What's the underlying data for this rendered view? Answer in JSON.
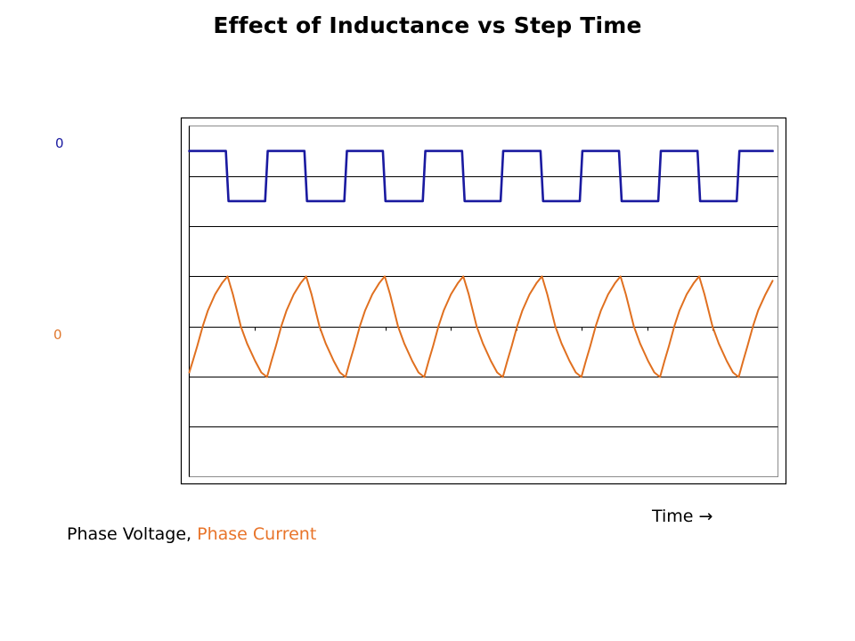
{
  "chart_data": {
    "type": "line",
    "title": "Effect of Inductance vs Step Time",
    "xlabel": "Time",
    "xlabel_arrow": "→",
    "ylabel": "",
    "xlim": [
      0,
      9
    ],
    "ylim": [
      0,
      7
    ],
    "grid": true,
    "grid_y_values": [
      1,
      2,
      3,
      4,
      5,
      6
    ],
    "x_minor_ticks": [
      1,
      2,
      3,
      4,
      5,
      6,
      7,
      8
    ],
    "zero_labels": [
      {
        "text": "0",
        "series": "Phase Voltage",
        "color": "#1a1aa0"
      },
      {
        "text": "0",
        "series": "Phase Current",
        "color": "#e0782e"
      }
    ],
    "legend": {
      "position": "bottom-left",
      "entries": [
        {
          "text": "Phase Voltage",
          "separator": ", ",
          "color": "#000000"
        },
        {
          "text": "Phase Current",
          "color": "#e8742a"
        }
      ]
    },
    "series": [
      {
        "name": "Phase Voltage",
        "color": "#1a1aa0",
        "x": [
          0,
          0.56,
          0.6,
          1.16,
          1.2,
          1.76,
          1.8,
          2.37,
          2.41,
          2.96,
          3.0,
          3.57,
          3.61,
          4.17,
          4.21,
          4.76,
          4.8,
          5.37,
          5.41,
          5.97,
          6.01,
          6.57,
          6.61,
          7.17,
          7.21,
          7.77,
          7.81,
          8.37,
          8.41,
          8.92
        ],
        "y": [
          6.5,
          6.5,
          5.5,
          5.5,
          6.5,
          6.5,
          5.5,
          5.5,
          6.5,
          6.5,
          5.5,
          5.5,
          6.5,
          6.5,
          5.5,
          5.5,
          6.5,
          6.5,
          5.5,
          5.5,
          6.5,
          6.5,
          5.5,
          5.5,
          6.5,
          6.5,
          5.5,
          5.5,
          6.5,
          6.5
        ]
      },
      {
        "name": "Phase Current",
        "color": "#e07020",
        "x": [
          0,
          0.055,
          0.123,
          0.205,
          0.286,
          0.395,
          0.504,
          0.585,
          0.667,
          0.789,
          0.884,
          1.007,
          1.102,
          1.189,
          1.257,
          1.325,
          1.407,
          1.488,
          1.597,
          1.706,
          1.787,
          1.869,
          1.991,
          2.086,
          2.209,
          2.304,
          2.39,
          2.458,
          2.526,
          2.608,
          2.689,
          2.798,
          2.907,
          2.988,
          3.07,
          3.192,
          3.287,
          3.41,
          3.505,
          3.592,
          3.66,
          3.728,
          3.81,
          3.891,
          4.0,
          4.109,
          4.19,
          4.272,
          4.394,
          4.489,
          4.612,
          4.707,
          4.794,
          4.862,
          4.93,
          5.012,
          5.093,
          5.202,
          5.311,
          5.392,
          5.474,
          5.596,
          5.691,
          5.814,
          5.909,
          5.995,
          6.063,
          6.131,
          6.213,
          6.294,
          6.403,
          6.512,
          6.593,
          6.675,
          6.797,
          6.892,
          7.015,
          7.11,
          7.197,
          7.265,
          7.333,
          7.415,
          7.496,
          7.605,
          7.714,
          7.795,
          7.877,
          7.999,
          8.094,
          8.217,
          8.312,
          8.399,
          8.467,
          8.535,
          8.617,
          8.698,
          8.81,
          8.918
        ],
        "y": [
          2.08,
          2.31,
          2.61,
          3.0,
          3.32,
          3.64,
          3.87,
          4.0,
          3.64,
          3.0,
          2.66,
          2.31,
          2.08,
          1.99,
          2.31,
          2.61,
          3.0,
          3.32,
          3.64,
          3.87,
          4.0,
          3.64,
          3.0,
          2.66,
          2.31,
          2.08,
          1.99,
          2.31,
          2.61,
          3.0,
          3.32,
          3.64,
          3.87,
          4.0,
          3.64,
          3.0,
          2.66,
          2.31,
          2.08,
          1.99,
          2.31,
          2.61,
          3.0,
          3.32,
          3.64,
          3.87,
          4.0,
          3.64,
          3.0,
          2.66,
          2.31,
          2.08,
          1.99,
          2.31,
          2.61,
          3.0,
          3.32,
          3.64,
          3.87,
          4.0,
          3.64,
          3.0,
          2.66,
          2.31,
          2.08,
          1.99,
          2.31,
          2.61,
          3.0,
          3.32,
          3.64,
          3.87,
          4.0,
          3.64,
          3.0,
          2.66,
          2.31,
          2.08,
          1.99,
          2.31,
          2.61,
          3.0,
          3.32,
          3.64,
          3.87,
          4.0,
          3.64,
          3.0,
          2.66,
          2.31,
          2.08,
          1.99,
          2.31,
          2.61,
          3.0,
          3.32,
          3.64,
          3.91
        ]
      }
    ]
  }
}
